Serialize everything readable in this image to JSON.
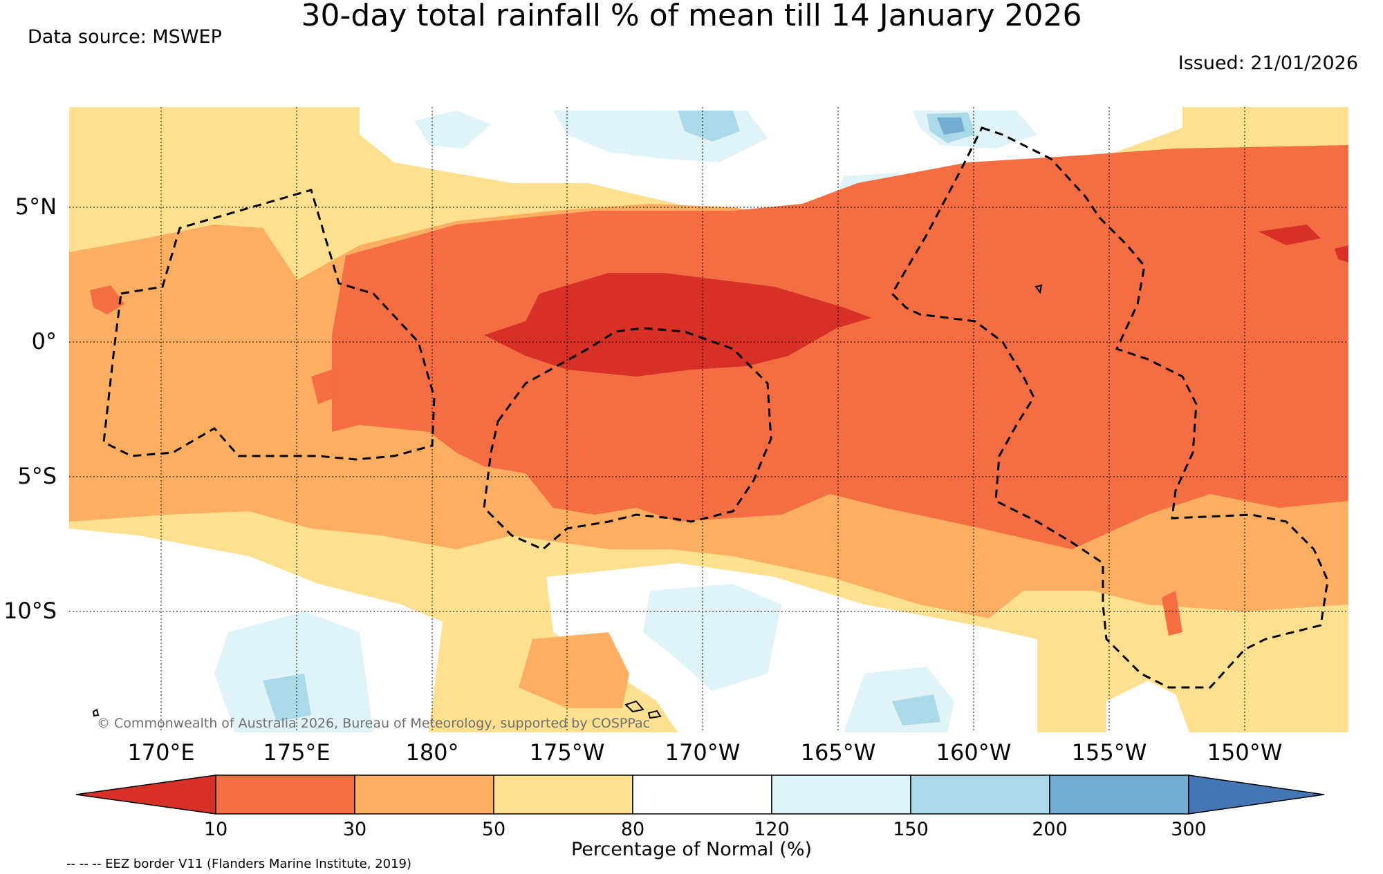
{
  "header": {
    "title": "30-day total rainfall % of mean till 14 January 2026",
    "source": "Data source: MSWEP",
    "issued": "Issued: 21/01/2026"
  },
  "map": {
    "lat_labels": [
      "5°N",
      "0°",
      "5°S",
      "10°S"
    ],
    "lon_labels": [
      "170°E",
      "175°E",
      "180°",
      "175°W",
      "170°W",
      "165°W",
      "160°W",
      "155°W",
      "150°W"
    ],
    "copyright": "© Commonwealth of Australia 2026, Bureau of Meteorology, supported by COSPPac"
  },
  "legend": {
    "colors": [
      "#d73027",
      "#f46d43",
      "#fdae61",
      "#fee090",
      "#ffffff",
      "#e0f3f8",
      "#abd9e9",
      "#74add1",
      "#4575b4"
    ],
    "ticks": [
      "10",
      "30",
      "50",
      "80",
      "120",
      "150",
      "200",
      "300"
    ],
    "label": "Percentage of Normal (%)",
    "eez_note": "-- -- -- EEZ border V11 (Flanders Marine Institute, 2019)"
  }
}
